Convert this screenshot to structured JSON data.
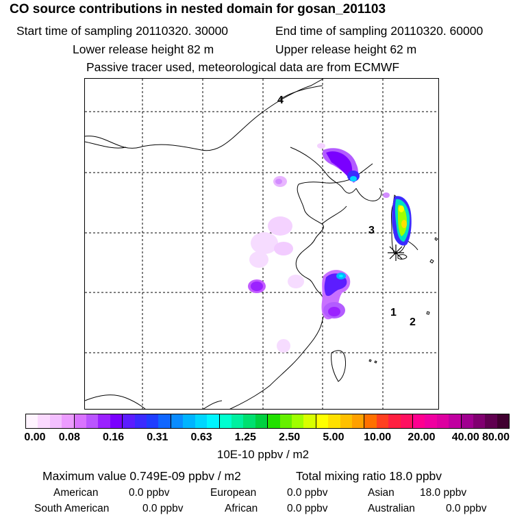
{
  "title": "CO  source contributions in nested domain for gosan_201103",
  "header": {
    "start_time": "Start time of sampling 20110320. 30000",
    "end_time": "End time of sampling 20110320. 60000",
    "lower_height": "Lower release height   82 m",
    "upper_height": "Upper release height   62 m",
    "tracer_note": "Passive tracer used, meteorological data are from ECMWF"
  },
  "map": {
    "region_labels": [
      "4",
      "3",
      "1",
      "2"
    ],
    "receptor_marker": "asterisk"
  },
  "colorbar": {
    "segment_colors": [
      "#fff4ff",
      "#fbd9ff",
      "#f3bfff",
      "#ec9cff",
      "#d973ff",
      "#bb55ff",
      "#9b22ff",
      "#7a00ff",
      "#5c1dff",
      "#3b2bff",
      "#1f3dff",
      "#0f66ff",
      "#0a8cff",
      "#00b4ff",
      "#00d6ff",
      "#00f5ff",
      "#00ffd0",
      "#00f0a0",
      "#00e070",
      "#00d040",
      "#22e000",
      "#66f000",
      "#a0ff00",
      "#d8ff00",
      "#ffff00",
      "#ffe000",
      "#ffc000",
      "#ffa000",
      "#ff7000",
      "#ff4020",
      "#ff2040",
      "#ff1060",
      "#ff0090",
      "#f000a0",
      "#dd00a0",
      "#c000a0",
      "#a00090",
      "#800070",
      "#600050",
      "#400030"
    ],
    "tick_labels": [
      "0.00",
      "0.08",
      "0.16",
      "0.31",
      "0.63",
      "1.25",
      "2.50",
      "5.00",
      "10.00",
      "20.00",
      "40.00",
      "80.00"
    ],
    "unit": "10E-10 ppbv / m2"
  },
  "summary": {
    "max_value": "Maximum value  0.749E-09 ppbv / m2",
    "total_mixing": "Total mixing ratio       18.0 ppbv",
    "rows": [
      [
        {
          "name": "American",
          "value": "0.0 ppbv"
        },
        {
          "name": "European",
          "value": "0.0 ppbv"
        },
        {
          "name": "Asian",
          "value": "18.0 ppbv"
        }
      ],
      [
        {
          "name": "South American",
          "value": "0.0 ppbv"
        },
        {
          "name": "African",
          "value": "0.0 ppbv"
        },
        {
          "name": "Australian",
          "value": "0.0 ppbv"
        }
      ]
    ]
  }
}
